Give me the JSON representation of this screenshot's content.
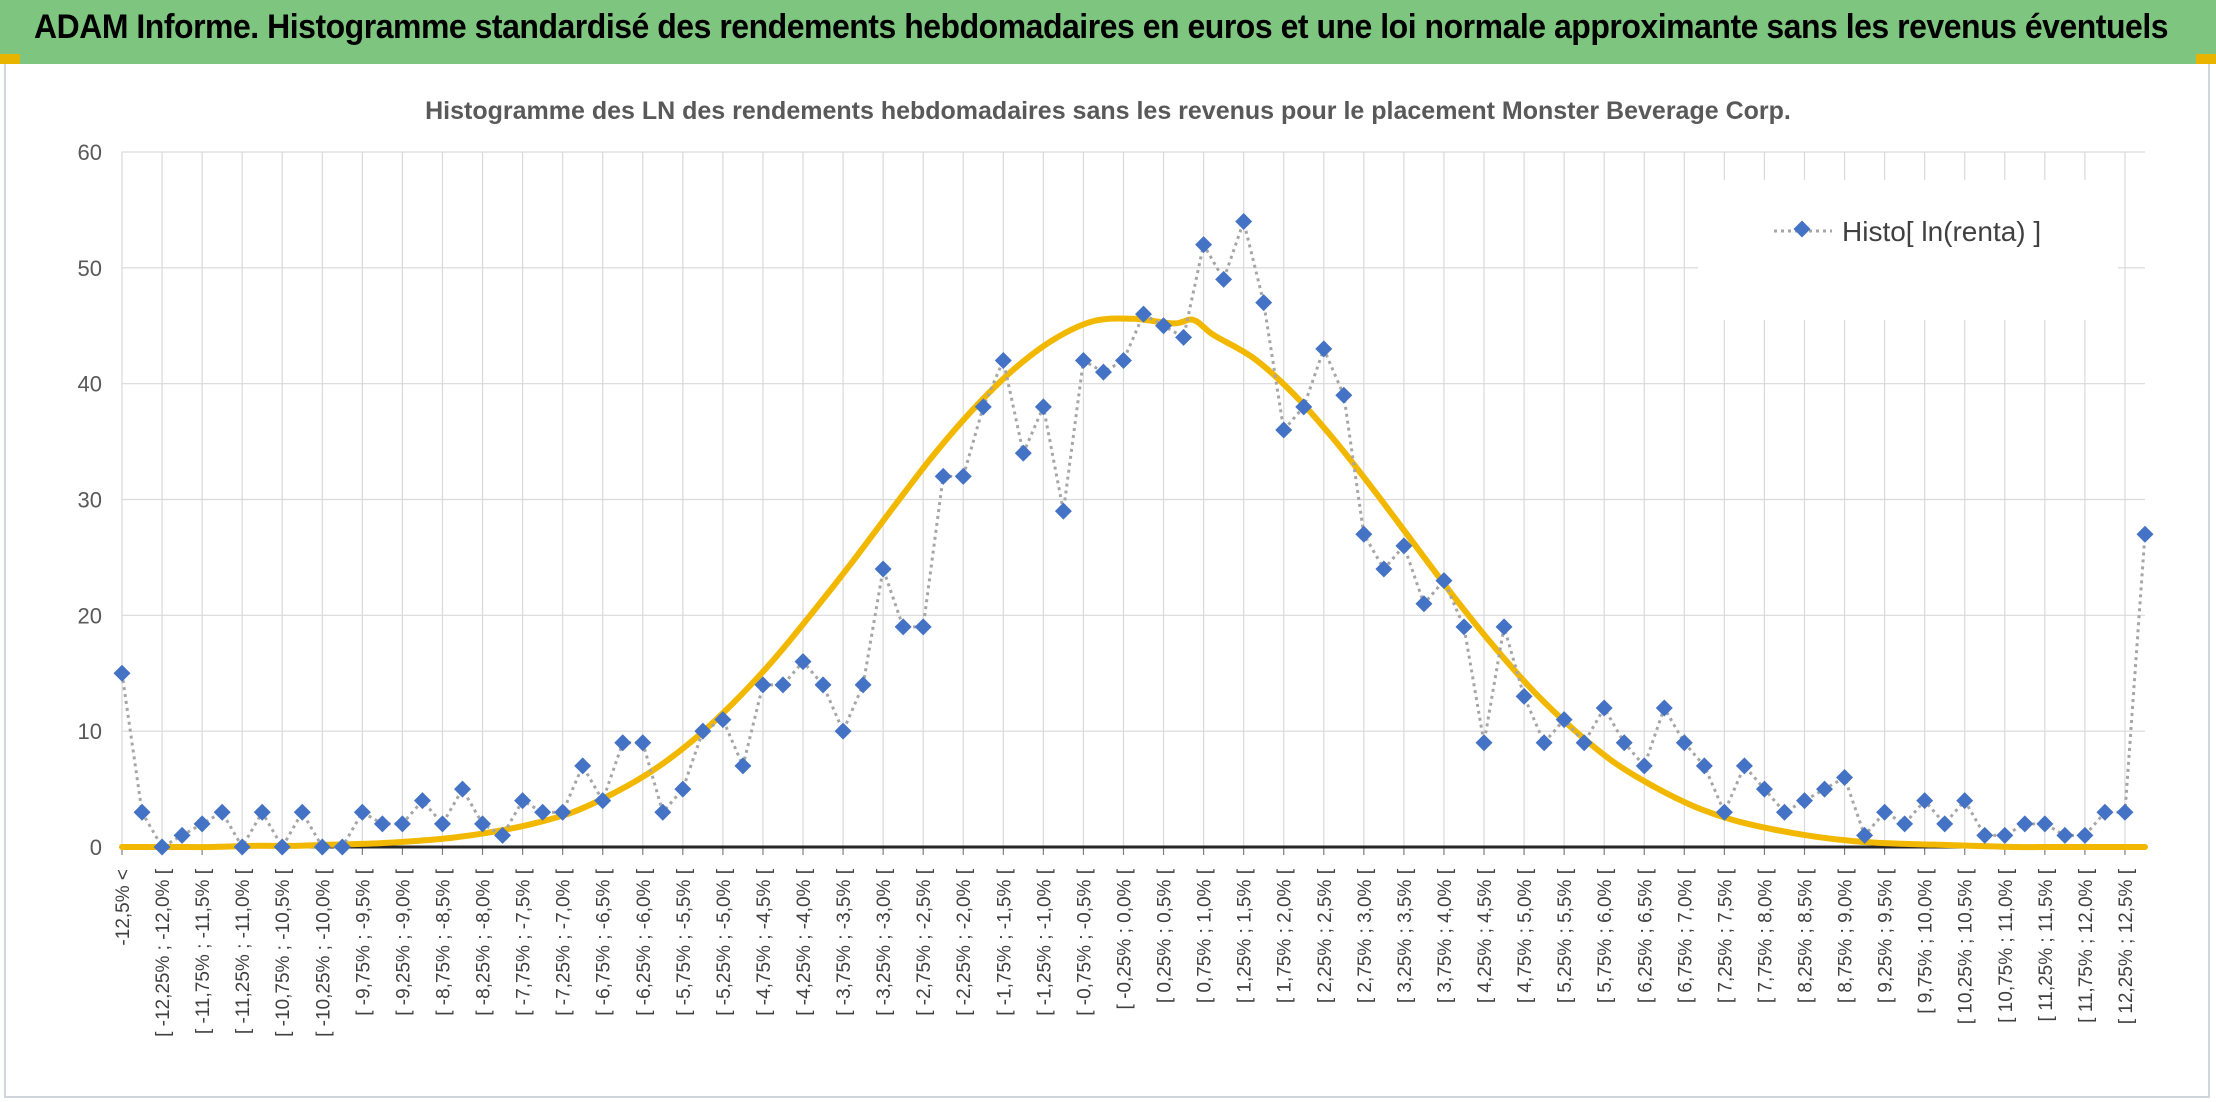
{
  "header": {
    "title": "ADAM Informe. Histogramme standardisé des rendements hebdomadaires en euros et une loi normale approximante sans les revenus éventuels"
  },
  "colors": {
    "banner": "#7ec57f",
    "accent_gold": "#e8b400",
    "histo_marker": "#4472c4",
    "histo_line": "#a6a6a6",
    "normal_curve": "#f2b800"
  },
  "chart_data": {
    "type": "line",
    "title": "Histogramme des LN des rendements hebdomadaires sans les revenus pour le placement Monster Beverage Corp.",
    "xlabel": "",
    "ylabel": "",
    "ylim": [
      0,
      60
    ],
    "yticks": [
      0,
      10,
      20,
      30,
      40,
      50,
      60
    ],
    "grid": true,
    "legend_position": "top-right",
    "categories": [
      "-12,5% <",
      "[ -12,25% ; -12,0% [",
      "[ -11,75% ; -11,5% [",
      "[ -11,25% ; -11,0% [",
      "[ -10,75% ; -10,5% [",
      "[ -10,25% ; -10,0% [",
      "[ -9,75% ; -9,5% [",
      "[ -9,25% ; -9,0% [",
      "[ -8,75% ; -8,5% [",
      "[ -8,25% ; -8,0% [",
      "[ -7,75% ; -7,5% [",
      "[ -7,25% ; -7,0% [",
      "[ -6,75% ; -6,5% [",
      "[ -6,25% ; -6,0% [",
      "[ -5,75% ; -5,5% [",
      "[ -5,25% ; -5,0% [",
      "[ -4,75% ; -4,5% [",
      "[ -4,25% ; -4,0% [",
      "[ -3,75% ; -3,5% [",
      "[ -3,25% ; -3,0% [",
      "[ -2,75% ; -2,5% [",
      "[ -2,25% ; -2,0% [",
      "[ -1,75% ; -1,5% [",
      "[ -1,25% ; -1,0% [",
      "[ -0,75% ; -0,5% [",
      "[ -0,25% ; 0,0% [",
      "[ 0,25% ; 0,5% [",
      "[ 0,75% ; 1,0% [",
      "[ 1,25% ; 1,5% [",
      "[ 1,75% ; 2,0% [",
      "[ 2,25% ; 2,5% [",
      "[ 2,75% ; 3,0% [",
      "[ 3,25% ; 3,5% [",
      "[ 3,75% ; 4,0% [",
      "[ 4,25% ; 4,5% [",
      "[ 4,75% ; 5,0% [",
      "[ 5,25% ; 5,5% [",
      "[ 5,75% ; 6,0% [",
      "[ 6,25% ; 6,5% [",
      "[ 6,75% ; 7,0% [",
      "[ 7,25% ; 7,5% [",
      "[ 7,75% ; 8,0% [",
      "[ 8,25% ; 8,5% [",
      "[ 8,75% ; 9,0% [",
      "[ 9,25% ; 9,5% [",
      "[ 9,75% ; 10,0% [",
      "[ 10,25% ; 10,5% [",
      "[ 10,75% ; 11,0% [",
      "[ 11,25% ; 11,5% [",
      "[ 11,75% ; 12,0% [",
      "[ 12,25% ; 12,5% ["
    ],
    "series": [
      {
        "name": "Histo[ ln(renta) ]",
        "style": "dotted-line-diamond",
        "x": [
          -12.625,
          -12.375,
          -12.125,
          -11.875,
          -11.625,
          -11.375,
          -11.125,
          -10.875,
          -10.625,
          -10.375,
          -10.125,
          -9.875,
          -9.625,
          -9.375,
          -9.125,
          -8.875,
          -8.625,
          -8.375,
          -8.125,
          -7.875,
          -7.625,
          -7.375,
          -7.125,
          -6.875,
          -6.625,
          -6.375,
          -6.125,
          -5.875,
          -5.625,
          -5.375,
          -5.125,
          -4.875,
          -4.625,
          -4.375,
          -4.125,
          -3.875,
          -3.625,
          -3.375,
          -3.125,
          -2.875,
          -2.625,
          -2.375,
          -2.125,
          -1.875,
          -1.625,
          -1.375,
          -1.125,
          -0.875,
          -0.625,
          -0.375,
          -0.125,
          0.125,
          0.375,
          0.625,
          0.875,
          1.125,
          1.375,
          1.625,
          1.875,
          2.125,
          2.375,
          2.625,
          2.875,
          3.125,
          3.375,
          3.625,
          3.875,
          4.125,
          4.375,
          4.625,
          4.875,
          5.125,
          5.375,
          5.625,
          5.875,
          6.125,
          6.375,
          6.625,
          6.875,
          7.125,
          7.375,
          7.625,
          7.875,
          8.125,
          8.375,
          8.625,
          8.875,
          9.125,
          9.375,
          9.625,
          9.875,
          10.125,
          10.375,
          10.625,
          10.875,
          11.125,
          11.375,
          11.625,
          11.875,
          12.125,
          12.375,
          12.625
        ],
        "values": [
          15,
          3,
          0,
          1,
          2,
          3,
          0,
          3,
          0,
          3,
          0,
          0,
          3,
          2,
          2,
          4,
          2,
          5,
          2,
          1,
          4,
          3,
          3,
          7,
          4,
          9,
          9,
          3,
          5,
          10,
          11,
          7,
          14,
          14,
          16,
          14,
          10,
          14,
          24,
          19,
          19,
          32,
          32,
          38,
          42,
          34,
          38,
          29,
          42,
          41,
          42,
          46,
          45,
          44,
          52,
          49,
          54,
          47,
          36,
          38,
          43,
          39,
          27,
          24,
          26,
          21,
          23,
          19,
          9,
          19,
          13,
          9,
          11,
          9,
          12,
          9,
          7,
          12,
          9,
          7,
          3,
          7,
          5,
          3,
          4,
          5,
          6,
          1,
          3,
          2,
          4,
          2,
          4,
          1,
          1,
          2,
          2,
          1,
          1,
          3,
          3,
          27
        ]
      },
      {
        "name": "",
        "style": "smooth-line",
        "x": [
          -12.625,
          -12.0,
          -11.5,
          -11.0,
          -10.5,
          -10.0,
          -9.5,
          -9.0,
          -8.5,
          -8.0,
          -7.5,
          -7.0,
          -6.5,
          -6.0,
          -5.5,
          -5.0,
          -4.5,
          -4.0,
          -3.5,
          -3.0,
          -2.5,
          -2.0,
          -1.5,
          -1.0,
          -0.5,
          0.0,
          0.5,
          0.75,
          1.0,
          1.5,
          2.0,
          2.5,
          3.0,
          3.5,
          4.0,
          4.5,
          5.0,
          5.5,
          6.0,
          6.5,
          7.0,
          7.5,
          8.0,
          8.5,
          9.0,
          9.5,
          10.0,
          10.5,
          11.0,
          11.5,
          12.0,
          12.5,
          12.625
        ],
        "values": [
          0.0,
          0.0,
          0.0,
          0.1,
          0.1,
          0.2,
          0.3,
          0.5,
          0.8,
          1.3,
          2.0,
          3.0,
          4.6,
          6.6,
          9.2,
          12.4,
          16.1,
          20.3,
          24.7,
          29.3,
          33.8,
          37.8,
          41.2,
          43.8,
          45.4,
          45.6,
          45.2,
          45.5,
          44.2,
          42.2,
          39.1,
          35.2,
          30.8,
          26.2,
          21.6,
          17.3,
          13.4,
          10.1,
          7.3,
          5.2,
          3.5,
          2.3,
          1.5,
          0.9,
          0.5,
          0.3,
          0.2,
          0.1,
          0.0,
          0.0,
          0.0,
          0.0,
          0.0
        ]
      }
    ]
  }
}
